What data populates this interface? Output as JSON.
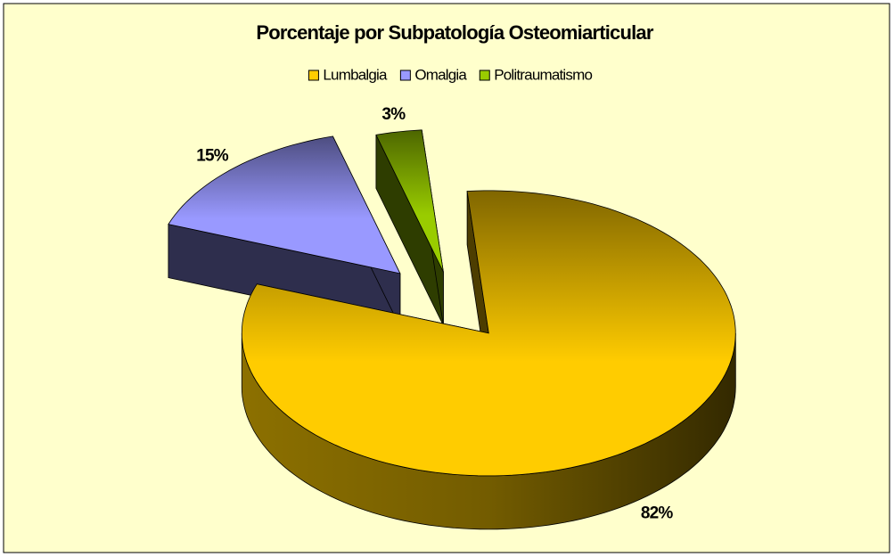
{
  "chart_data": {
    "type": "pie",
    "title": "Porcentaje por Subpatología Osteomiarticular",
    "categories": [
      "Lumbalgia",
      "Omalgia",
      "Politraumatismo"
    ],
    "values": [
      82,
      15,
      3
    ],
    "value_labels": [
      "82%",
      "15%",
      "3%"
    ],
    "colors": [
      "#FFCC00",
      "#9999FF",
      "#99CC00"
    ],
    "legend": "top"
  }
}
